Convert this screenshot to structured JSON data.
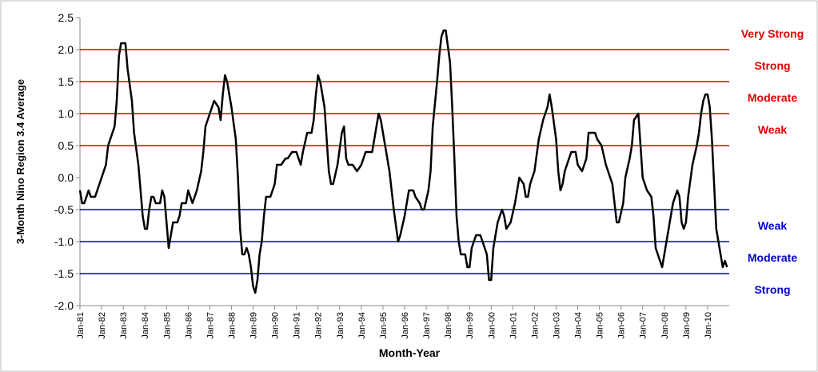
{
  "chart_data": {
    "type": "line",
    "xlabel": "Month-Year",
    "ylabel": "3-Month Nino Region 3.4 Average",
    "color": "#000000",
    "xlim": [
      1981,
      2011
    ],
    "ylim": [
      -2.0,
      2.5
    ],
    "yticks": [
      2.5,
      {
        "value": 2,
        "label": "2.0"
      },
      1.5,
      {
        "value": 1,
        "label": "1.0"
      },
      0.5,
      {
        "value": 0,
        "label": "0.0"
      },
      -0.5,
      {
        "value": -1,
        "label": "-1.0"
      },
      -1.5,
      {
        "value": -2,
        "label": "-2.0"
      }
    ],
    "xticks": [
      {
        "value": 1981,
        "label": "Jan-81"
      },
      {
        "value": 1982,
        "label": "Jan-82"
      },
      {
        "value": 1983,
        "label": "Jan-83"
      },
      {
        "value": 1984,
        "label": "Jan-84"
      },
      {
        "value": 1985,
        "label": "Jan-85"
      },
      {
        "value": 1986,
        "label": "Jan-86"
      },
      {
        "value": 1987,
        "label": "Jan-87"
      },
      {
        "value": 1988,
        "label": "Jan-88"
      },
      {
        "value": 1989,
        "label": "Jan-89"
      },
      {
        "value": 1990,
        "label": "Jan-90"
      },
      {
        "value": 1991,
        "label": "Jan-91"
      },
      {
        "value": 1992,
        "label": "Jan-92"
      },
      {
        "value": 1993,
        "label": "Jan-93"
      },
      {
        "value": 1994,
        "label": "Jan-94"
      },
      {
        "value": 1995,
        "label": "Jan-95"
      },
      {
        "value": 1996,
        "label": "Jan-96"
      },
      {
        "value": 1997,
        "label": "Jan-97"
      },
      {
        "value": 1998,
        "label": "Jan-98"
      },
      {
        "value": 1999,
        "label": "Jan-99"
      },
      {
        "value": 2000,
        "label": "Jan-00"
      },
      {
        "value": 2001,
        "label": "Jan-01"
      },
      {
        "value": 2002,
        "label": "Jan-02"
      },
      {
        "value": 2003,
        "label": "Jan-03"
      },
      {
        "value": 2004,
        "label": "Jan-04"
      },
      {
        "value": 2005,
        "label": "Jan-05"
      },
      {
        "value": 2006,
        "label": "Jan-06"
      },
      {
        "value": 2007,
        "label": "Jan-07"
      },
      {
        "value": 2008,
        "label": "Jan-08"
      },
      {
        "value": 2009,
        "label": "Jan-09"
      },
      {
        "value": 2010,
        "label": "Jan-10"
      }
    ],
    "reference_lines": [
      {
        "value": 2,
        "label": "Very Strong",
        "color": "#e00000"
      },
      {
        "value": 1.5,
        "label": "Strong",
        "color": "#e00000"
      },
      {
        "value": 1,
        "label": "Moderate",
        "color": "#e00000"
      },
      {
        "value": 0.5,
        "label": "Weak",
        "color": "#e00000"
      },
      {
        "value": -0.5,
        "label": "Weak",
        "color": "#0000cc"
      },
      {
        "value": -1,
        "label": "Moderate",
        "color": "#0000cc"
      },
      {
        "value": -1.5,
        "label": "Strong",
        "color": "#0000cc"
      }
    ],
    "x": [
      1981.0,
      1981.1,
      1981.2,
      1981.4,
      1981.5,
      1981.7,
      1981.9,
      1982.0,
      1982.2,
      1982.3,
      1982.5,
      1982.6,
      1982.7,
      1982.8,
      1982.9,
      1983.1,
      1983.2,
      1983.4,
      1983.5,
      1983.7,
      1983.8,
      1983.9,
      1984.0,
      1984.1,
      1984.2,
      1984.3,
      1984.4,
      1984.5,
      1984.7,
      1984.8,
      1984.9,
      1985.0,
      1985.1,
      1985.2,
      1985.3,
      1985.5,
      1985.6,
      1985.7,
      1985.9,
      1986.0,
      1986.2,
      1986.4,
      1986.6,
      1986.7,
      1986.8,
      1987.0,
      1987.1,
      1987.2,
      1987.4,
      1987.5,
      1987.6,
      1987.7,
      1987.8,
      1988.0,
      1988.2,
      1988.3,
      1988.4,
      1988.5,
      1988.6,
      1988.7,
      1988.8,
      1988.9,
      1989.0,
      1989.1,
      1989.2,
      1989.3,
      1989.4,
      1989.5,
      1989.6,
      1989.8,
      1990.0,
      1990.1,
      1990.3,
      1990.5,
      1990.6,
      1990.8,
      1991.0,
      1991.2,
      1991.3,
      1991.5,
      1991.7,
      1991.8,
      1991.9,
      1992.0,
      1992.1,
      1992.3,
      1992.4,
      1992.5,
      1992.6,
      1992.7,
      1992.9,
      1993.1,
      1993.2,
      1993.3,
      1993.4,
      1993.6,
      1993.8,
      1994.0,
      1994.2,
      1994.5,
      1994.6,
      1994.8,
      1994.9,
      1995.0,
      1995.2,
      1995.3,
      1995.4,
      1995.5,
      1995.7,
      1995.8,
      1996.0,
      1996.2,
      1996.4,
      1996.5,
      1996.7,
      1996.8,
      1996.9,
      1997.1,
      1997.2,
      1997.3,
      1997.5,
      1997.6,
      1997.7,
      1997.8,
      1997.9,
      1998.1,
      1998.2,
      1998.3,
      1998.4,
      1998.5,
      1998.6,
      1998.8,
      1998.9,
      1999.0,
      1999.1,
      1999.3,
      1999.5,
      1999.6,
      1999.8,
      1999.9,
      2000.0,
      2000.1,
      2000.3,
      2000.5,
      2000.6,
      2000.7,
      2000.9,
      2001.1,
      2001.2,
      2001.3,
      2001.5,
      2001.6,
      2001.7,
      2001.8,
      2002.0,
      2002.2,
      2002.4,
      2002.6,
      2002.7,
      2002.8,
      2003.0,
      2003.1,
      2003.2,
      2003.3,
      2003.4,
      2003.6,
      2003.7,
      2003.9,
      2004.0,
      2004.2,
      2004.4,
      2004.5,
      2004.8,
      2004.9,
      2005.1,
      2005.3,
      2005.5,
      2005.6,
      2005.7,
      2005.8,
      2005.9,
      2006.1,
      2006.2,
      2006.4,
      2006.5,
      2006.6,
      2006.8,
      2006.9,
      2007.0,
      2007.2,
      2007.4,
      2007.5,
      2007.6,
      2007.8,
      2007.9,
      2008.0,
      2008.2,
      2008.4,
      2008.6,
      2008.7,
      2008.8,
      2008.9,
      2009.0,
      2009.1,
      2009.3,
      2009.5,
      2009.6,
      2009.7,
      2009.8,
      2009.9,
      2010.0,
      2010.1,
      2010.2,
      2010.3,
      2010.4,
      2010.6,
      2010.7,
      2010.8,
      2010.9
    ],
    "values": [
      -0.2,
      -0.4,
      -0.4,
      -0.2,
      -0.3,
      -0.3,
      -0.1,
      0.0,
      0.2,
      0.5,
      0.7,
      0.8,
      1.2,
      1.9,
      2.1,
      2.1,
      1.7,
      1.2,
      0.7,
      0.2,
      -0.2,
      -0.6,
      -0.8,
      -0.8,
      -0.5,
      -0.3,
      -0.3,
      -0.4,
      -0.4,
      -0.2,
      -0.3,
      -0.7,
      -1.1,
      -0.9,
      -0.7,
      -0.7,
      -0.6,
      -0.4,
      -0.4,
      -0.2,
      -0.4,
      -0.2,
      0.1,
      0.4,
      0.8,
      1.0,
      1.1,
      1.2,
      1.1,
      0.9,
      1.3,
      1.6,
      1.5,
      1.1,
      0.6,
      0.0,
      -0.8,
      -1.2,
      -1.2,
      -1.1,
      -1.2,
      -1.4,
      -1.7,
      -1.8,
      -1.6,
      -1.2,
      -1.0,
      -0.6,
      -0.3,
      -0.3,
      -0.1,
      0.2,
      0.2,
      0.3,
      0.3,
      0.4,
      0.4,
      0.2,
      0.4,
      0.7,
      0.7,
      0.9,
      1.3,
      1.6,
      1.5,
      1.1,
      0.6,
      0.1,
      -0.1,
      -0.1,
      0.2,
      0.7,
      0.8,
      0.3,
      0.2,
      0.2,
      0.1,
      0.2,
      0.4,
      0.4,
      0.6,
      1.0,
      0.9,
      0.7,
      0.3,
      0.1,
      -0.2,
      -0.5,
      -1.0,
      -0.9,
      -0.6,
      -0.2,
      -0.2,
      -0.3,
      -0.4,
      -0.5,
      -0.5,
      -0.2,
      0.1,
      0.8,
      1.5,
      1.9,
      2.2,
      2.3,
      2.3,
      1.8,
      1.1,
      0.3,
      -0.6,
      -1.0,
      -1.2,
      -1.2,
      -1.4,
      -1.4,
      -1.1,
      -0.9,
      -0.9,
      -1.0,
      -1.2,
      -1.6,
      -1.6,
      -1.1,
      -0.7,
      -0.5,
      -0.6,
      -0.8,
      -0.7,
      -0.4,
      -0.2,
      0.0,
      -0.1,
      -0.3,
      -0.3,
      -0.1,
      0.1,
      0.6,
      0.9,
      1.1,
      1.3,
      1.1,
      0.6,
      0.1,
      -0.2,
      -0.1,
      0.1,
      0.3,
      0.4,
      0.4,
      0.2,
      0.1,
      0.3,
      0.7,
      0.7,
      0.6,
      0.5,
      0.2,
      0.0,
      -0.1,
      -0.4,
      -0.7,
      -0.7,
      -0.4,
      0.0,
      0.3,
      0.5,
      0.9,
      1.0,
      0.5,
      0.0,
      -0.2,
      -0.3,
      -0.6,
      -1.1,
      -1.3,
      -1.4,
      -1.2,
      -0.8,
      -0.4,
      -0.2,
      -0.3,
      -0.7,
      -0.8,
      -0.7,
      -0.3,
      0.2,
      0.5,
      0.7,
      1.0,
      1.2,
      1.3,
      1.3,
      1.1,
      0.6,
      -0.1,
      -0.8,
      -1.2,
      -1.4,
      -1.3,
      -1.4
    ]
  }
}
